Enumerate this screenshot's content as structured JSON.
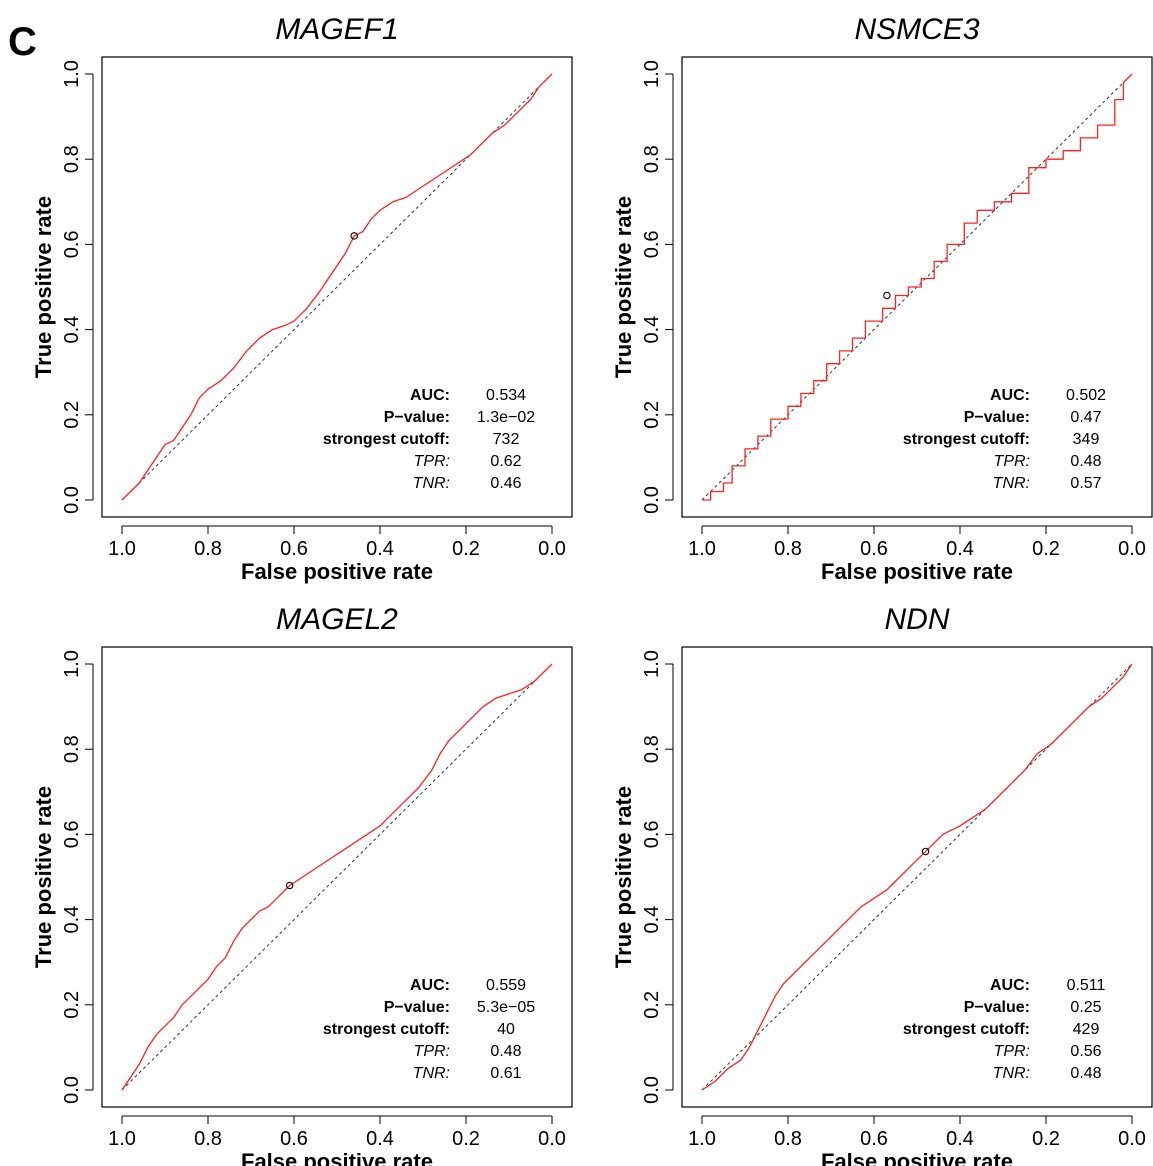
{
  "figure": {
    "panel_label": "C"
  },
  "chart_data": [
    {
      "type": "line",
      "title": "MAGEF1",
      "xlabel": "False positive rate",
      "ylabel": "True positive rate",
      "xlim": [
        1.0,
        0.0
      ],
      "ylim": [
        0.0,
        1.0
      ],
      "xticks": [
        "1.0",
        "0.8",
        "0.6",
        "0.4",
        "0.2",
        "0.0"
      ],
      "yticks": [
        "0.0",
        "0.2",
        "0.4",
        "0.6",
        "0.8",
        "1.0"
      ],
      "grid": false,
      "diagonal": true,
      "curve_color": "#ff2020",
      "series": [
        {
          "x": [
            1.0,
            0.98,
            0.96,
            0.94,
            0.92,
            0.9,
            0.88,
            0.86,
            0.84,
            0.82,
            0.8,
            0.77,
            0.74,
            0.71,
            0.68,
            0.65,
            0.62,
            0.6,
            0.57,
            0.54,
            0.52,
            0.5,
            0.48,
            0.46,
            0.44,
            0.42,
            0.4,
            0.37,
            0.34,
            0.31,
            0.28,
            0.25,
            0.22,
            0.19,
            0.17,
            0.14,
            0.11,
            0.08,
            0.05,
            0.03,
            0.0
          ],
          "y": [
            0.0,
            0.02,
            0.04,
            0.07,
            0.1,
            0.13,
            0.14,
            0.17,
            0.2,
            0.24,
            0.26,
            0.28,
            0.31,
            0.35,
            0.38,
            0.4,
            0.41,
            0.42,
            0.45,
            0.49,
            0.52,
            0.55,
            0.58,
            0.62,
            0.63,
            0.66,
            0.68,
            0.7,
            0.71,
            0.73,
            0.75,
            0.77,
            0.79,
            0.81,
            0.83,
            0.86,
            0.88,
            0.91,
            0.94,
            0.97,
            1.0
          ]
        }
      ],
      "cutoff_point": {
        "x": 0.46,
        "y": 0.62
      },
      "stats": [
        {
          "label": "AUC:",
          "value": "0.534",
          "italic": false
        },
        {
          "label": "P−value:",
          "value": "1.3e−02",
          "italic": false
        },
        {
          "label": "strongest cutoff:",
          "value": "732",
          "italic": false
        },
        {
          "label": "TPR:",
          "value": "0.62",
          "italic": true
        },
        {
          "label": "TNR:",
          "value": "0.46",
          "italic": true
        }
      ]
    },
    {
      "type": "line",
      "title": "NSMCE3",
      "xlabel": "False positive rate",
      "ylabel": "True positive rate",
      "xlim": [
        1.0,
        0.0
      ],
      "ylim": [
        0.0,
        1.0
      ],
      "xticks": [
        "1.0",
        "0.8",
        "0.6",
        "0.4",
        "0.2",
        "0.0"
      ],
      "yticks": [
        "0.0",
        "0.2",
        "0.4",
        "0.6",
        "0.8",
        "1.0"
      ],
      "grid": false,
      "diagonal": true,
      "curve_color": "#ff2020",
      "series": [
        {
          "x": [
            1.0,
            0.98,
            0.98,
            0.95,
            0.95,
            0.93,
            0.93,
            0.9,
            0.9,
            0.87,
            0.87,
            0.84,
            0.84,
            0.8,
            0.8,
            0.77,
            0.77,
            0.74,
            0.74,
            0.71,
            0.71,
            0.68,
            0.68,
            0.65,
            0.65,
            0.62,
            0.62,
            0.58,
            0.58,
            0.55,
            0.55,
            0.52,
            0.52,
            0.49,
            0.49,
            0.46,
            0.46,
            0.43,
            0.43,
            0.39,
            0.39,
            0.36,
            0.36,
            0.32,
            0.32,
            0.28,
            0.28,
            0.24,
            0.24,
            0.2,
            0.2,
            0.16,
            0.16,
            0.12,
            0.12,
            0.08,
            0.08,
            0.04,
            0.04,
            0.02,
            0.02,
            0.0
          ],
          "y": [
            0.0,
            0.0,
            0.02,
            0.02,
            0.04,
            0.04,
            0.08,
            0.08,
            0.12,
            0.12,
            0.15,
            0.15,
            0.19,
            0.19,
            0.22,
            0.22,
            0.25,
            0.25,
            0.28,
            0.28,
            0.32,
            0.32,
            0.35,
            0.35,
            0.38,
            0.38,
            0.42,
            0.42,
            0.45,
            0.45,
            0.48,
            0.48,
            0.5,
            0.5,
            0.52,
            0.52,
            0.56,
            0.56,
            0.6,
            0.6,
            0.65,
            0.65,
            0.68,
            0.68,
            0.7,
            0.7,
            0.72,
            0.72,
            0.78,
            0.78,
            0.8,
            0.8,
            0.82,
            0.82,
            0.85,
            0.85,
            0.88,
            0.88,
            0.94,
            0.94,
            0.98,
            1.0
          ]
        }
      ],
      "cutoff_point": {
        "x": 0.57,
        "y": 0.48
      },
      "stats": [
        {
          "label": "AUC:",
          "value": "0.502",
          "italic": false
        },
        {
          "label": "P−value:",
          "value": "0.47",
          "italic": false
        },
        {
          "label": "strongest cutoff:",
          "value": "349",
          "italic": false
        },
        {
          "label": "TPR:",
          "value": "0.48",
          "italic": true
        },
        {
          "label": "TNR:",
          "value": "0.57",
          "italic": true
        }
      ]
    },
    {
      "type": "line",
      "title": "MAGEL2",
      "xlabel": "False positive rate",
      "ylabel": "True positive rate",
      "xlim": [
        1.0,
        0.0
      ],
      "ylim": [
        0.0,
        1.0
      ],
      "xticks": [
        "1.0",
        "0.8",
        "0.6",
        "0.4",
        "0.2",
        "0.0"
      ],
      "yticks": [
        "0.0",
        "0.2",
        "0.4",
        "0.6",
        "0.8",
        "1.0"
      ],
      "grid": false,
      "diagonal": true,
      "curve_color": "#ff2020",
      "series": [
        {
          "x": [
            1.0,
            0.98,
            0.96,
            0.94,
            0.92,
            0.9,
            0.88,
            0.86,
            0.84,
            0.82,
            0.8,
            0.78,
            0.76,
            0.74,
            0.72,
            0.7,
            0.68,
            0.66,
            0.64,
            0.61,
            0.58,
            0.55,
            0.52,
            0.49,
            0.46,
            0.43,
            0.4,
            0.37,
            0.34,
            0.31,
            0.28,
            0.26,
            0.24,
            0.22,
            0.2,
            0.18,
            0.16,
            0.13,
            0.1,
            0.07,
            0.04,
            0.02,
            0.0
          ],
          "y": [
            0.0,
            0.03,
            0.06,
            0.1,
            0.13,
            0.15,
            0.17,
            0.2,
            0.22,
            0.24,
            0.26,
            0.29,
            0.31,
            0.35,
            0.38,
            0.4,
            0.42,
            0.43,
            0.45,
            0.48,
            0.5,
            0.52,
            0.54,
            0.56,
            0.58,
            0.6,
            0.62,
            0.65,
            0.68,
            0.71,
            0.75,
            0.79,
            0.82,
            0.84,
            0.86,
            0.88,
            0.9,
            0.92,
            0.93,
            0.94,
            0.96,
            0.98,
            1.0
          ]
        }
      ],
      "cutoff_point": {
        "x": 0.61,
        "y": 0.48
      },
      "stats": [
        {
          "label": "AUC:",
          "value": "0.559",
          "italic": false
        },
        {
          "label": "P−value:",
          "value": "5.3e−05",
          "italic": false
        },
        {
          "label": "strongest cutoff:",
          "value": "40",
          "italic": false
        },
        {
          "label": "TPR:",
          "value": "0.48",
          "italic": true
        },
        {
          "label": "TNR:",
          "value": "0.61",
          "italic": true
        }
      ]
    },
    {
      "type": "line",
      "title": "NDN",
      "xlabel": "False positive rate",
      "ylabel": "True positive rate",
      "xlim": [
        1.0,
        0.0
      ],
      "ylim": [
        0.0,
        1.0
      ],
      "xticks": [
        "1.0",
        "0.8",
        "0.6",
        "0.4",
        "0.2",
        "0.0"
      ],
      "yticks": [
        "0.0",
        "0.2",
        "0.4",
        "0.6",
        "0.8",
        "1.0"
      ],
      "grid": false,
      "diagonal": true,
      "curve_color": "#ff2020",
      "series": [
        {
          "x": [
            1.0,
            0.97,
            0.94,
            0.91,
            0.89,
            0.87,
            0.85,
            0.83,
            0.81,
            0.79,
            0.77,
            0.75,
            0.72,
            0.69,
            0.66,
            0.63,
            0.6,
            0.57,
            0.54,
            0.51,
            0.48,
            0.46,
            0.44,
            0.42,
            0.4,
            0.37,
            0.34,
            0.31,
            0.28,
            0.25,
            0.22,
            0.19,
            0.16,
            0.13,
            0.1,
            0.07,
            0.04,
            0.02,
            0.0
          ],
          "y": [
            0.0,
            0.02,
            0.05,
            0.07,
            0.1,
            0.14,
            0.18,
            0.22,
            0.25,
            0.27,
            0.29,
            0.31,
            0.34,
            0.37,
            0.4,
            0.43,
            0.45,
            0.47,
            0.5,
            0.53,
            0.56,
            0.58,
            0.6,
            0.61,
            0.62,
            0.64,
            0.66,
            0.69,
            0.72,
            0.75,
            0.79,
            0.81,
            0.84,
            0.87,
            0.9,
            0.92,
            0.95,
            0.97,
            1.0
          ]
        }
      ],
      "cutoff_point": {
        "x": 0.48,
        "y": 0.56
      },
      "stats": [
        {
          "label": "AUC:",
          "value": "0.511",
          "italic": false
        },
        {
          "label": "P−value:",
          "value": "0.25",
          "italic": false
        },
        {
          "label": "strongest cutoff:",
          "value": "429",
          "italic": false
        },
        {
          "label": "TPR:",
          "value": "0.56",
          "italic": true
        },
        {
          "label": "TNR:",
          "value": "0.48",
          "italic": true
        }
      ]
    }
  ]
}
